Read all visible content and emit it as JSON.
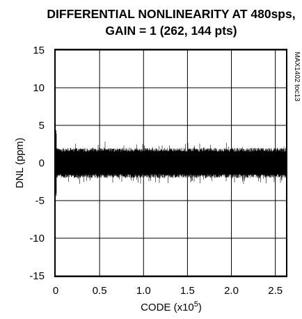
{
  "chart_data": {
    "type": "line",
    "title_line1": "DIFFERENTIAL NONLINEARITY AT 480sps,",
    "title_line2": "GAIN = 1 (262, 144  pts)",
    "xlabel_main": "CODE (x10",
    "xlabel_sup": "5",
    "xlabel_end": ")",
    "ylabel": "DNL (ppm)",
    "side_code": "MAX1402 toc13",
    "xlim": [
      0,
      2.62144
    ],
    "ylim": [
      -15,
      15
    ],
    "x_ticks": [
      0,
      0.5,
      1.0,
      1.5,
      2.0,
      2.5
    ],
    "x_tick_labels": [
      "0",
      "0.5",
      "1.0",
      "1.5",
      "2.0",
      "2.5"
    ],
    "y_ticks": [
      15,
      10,
      5,
      0,
      -5,
      -10,
      -15
    ],
    "y_tick_labels": [
      "15",
      "10",
      "5",
      "0",
      "-5",
      "-10",
      "-15"
    ],
    "grid": true,
    "series": [
      {
        "points": 262144,
        "typical_band": [
          -2,
          2
        ],
        "max": 4.6,
        "min": -4.6,
        "color": "#000000"
      }
    ]
  }
}
